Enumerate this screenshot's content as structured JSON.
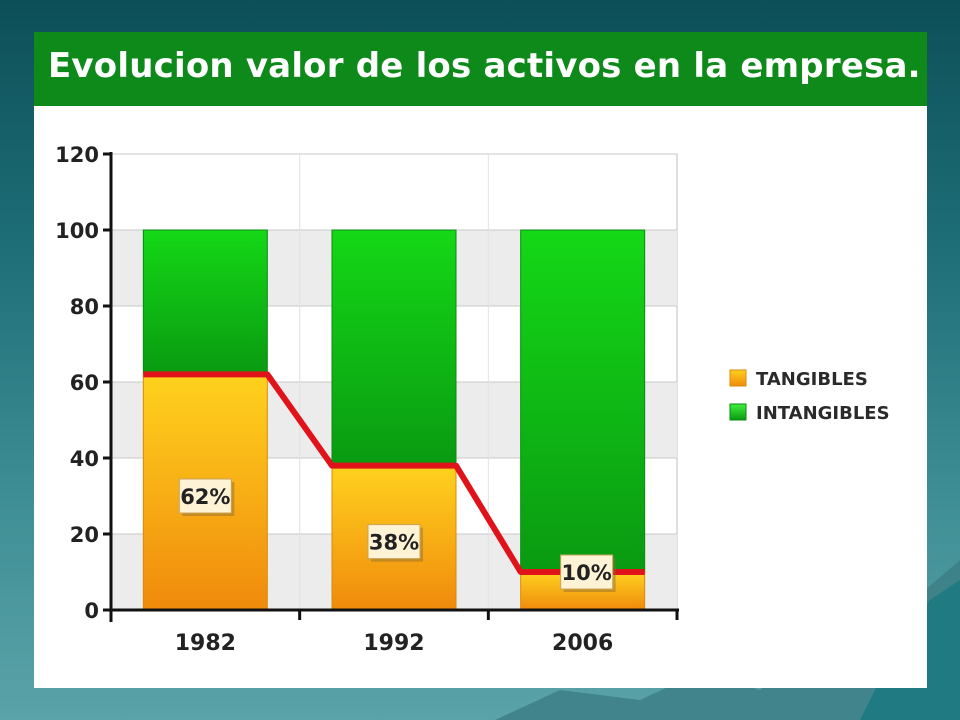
{
  "slide": {
    "title": "Evolucion valor de los activos en la empresa."
  },
  "colors": {
    "title_bar": "#0e8a1b",
    "tangibles": "#f5a414",
    "intangibles": "#12c40f",
    "trend_line": "#e0121a"
  },
  "chart_data": {
    "type": "bar",
    "stacked": true,
    "categories": [
      "1982",
      "1992",
      "2006"
    ],
    "series": [
      {
        "name": "TANGIBLES",
        "values": [
          62,
          38,
          10
        ]
      },
      {
        "name": "INTANGIBLES",
        "values": [
          38,
          62,
          90
        ]
      }
    ],
    "data_labels": [
      "62%",
      "38%",
      "10%"
    ],
    "trend_line": [
      62,
      38,
      10
    ],
    "ylim": [
      0,
      120
    ],
    "yticks": [
      "0",
      "20",
      "40",
      "60",
      "80",
      "100",
      "120"
    ],
    "grid": true,
    "legend": "right"
  }
}
